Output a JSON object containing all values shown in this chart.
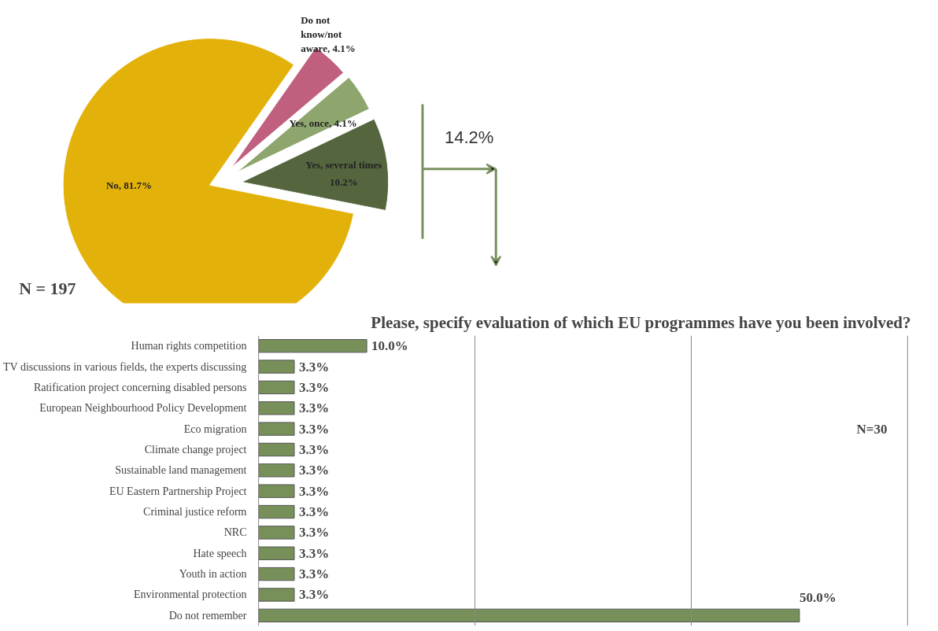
{
  "chart_data": [
    {
      "type": "pie",
      "categories": [
        "Do not know/not aware",
        "Yes, once",
        "Yes, several times",
        "No"
      ],
      "values": [
        4.1,
        4.1,
        10.2,
        81.7
      ],
      "colors": [
        "#c0607e",
        "#8ea66e",
        "#55663f",
        "#e3b20a"
      ],
      "value_labels": [
        "4.1%",
        "4.1%",
        "10.2%",
        "81.7%"
      ],
      "annotations": [
        "N = 197",
        "14.2%"
      ]
    },
    {
      "type": "bar",
      "orientation": "horizontal",
      "title": "Please, specify evaluation of which EU programmes have you been involved?",
      "categories": [
        "Human rights competition",
        "TV discussions in various fields, the experts discussing",
        "Ratification project concerning disabled persons",
        "European Neighbourhood Policy Development",
        "Eco migration",
        "Climate change project",
        "Sustainable land management",
        "EU Eastern Partnership Project",
        "Criminal justice reform",
        "NRC",
        "Hate speech",
        "Youth in action",
        "Environmental protection",
        "Do not remember"
      ],
      "values": [
        10.0,
        3.3,
        3.3,
        3.3,
        3.3,
        3.3,
        3.3,
        3.3,
        3.3,
        3.3,
        3.3,
        3.3,
        3.3,
        50.0
      ],
      "value_labels": [
        "10.0%",
        "3.3%",
        "3.3%",
        "3.3%",
        "3.3%",
        "3.3%",
        "3.3%",
        "3.3%",
        "3.3%",
        "3.3%",
        "3.3%",
        "3.3%",
        "3.3%",
        "50.0%"
      ],
      "color": "#77905a",
      "ref_lines": [
        {
          "axis": "x",
          "value": 0,
          "color": "#888888"
        },
        {
          "axis": "x",
          "value": 20,
          "color": "#888888"
        },
        {
          "axis": "x",
          "value": 40,
          "color": "#888888"
        },
        {
          "axis": "x",
          "value": 60,
          "color": "#888888"
        }
      ],
      "tick_labels": "y",
      "annotations": [
        "N=30"
      ]
    }
  ]
}
